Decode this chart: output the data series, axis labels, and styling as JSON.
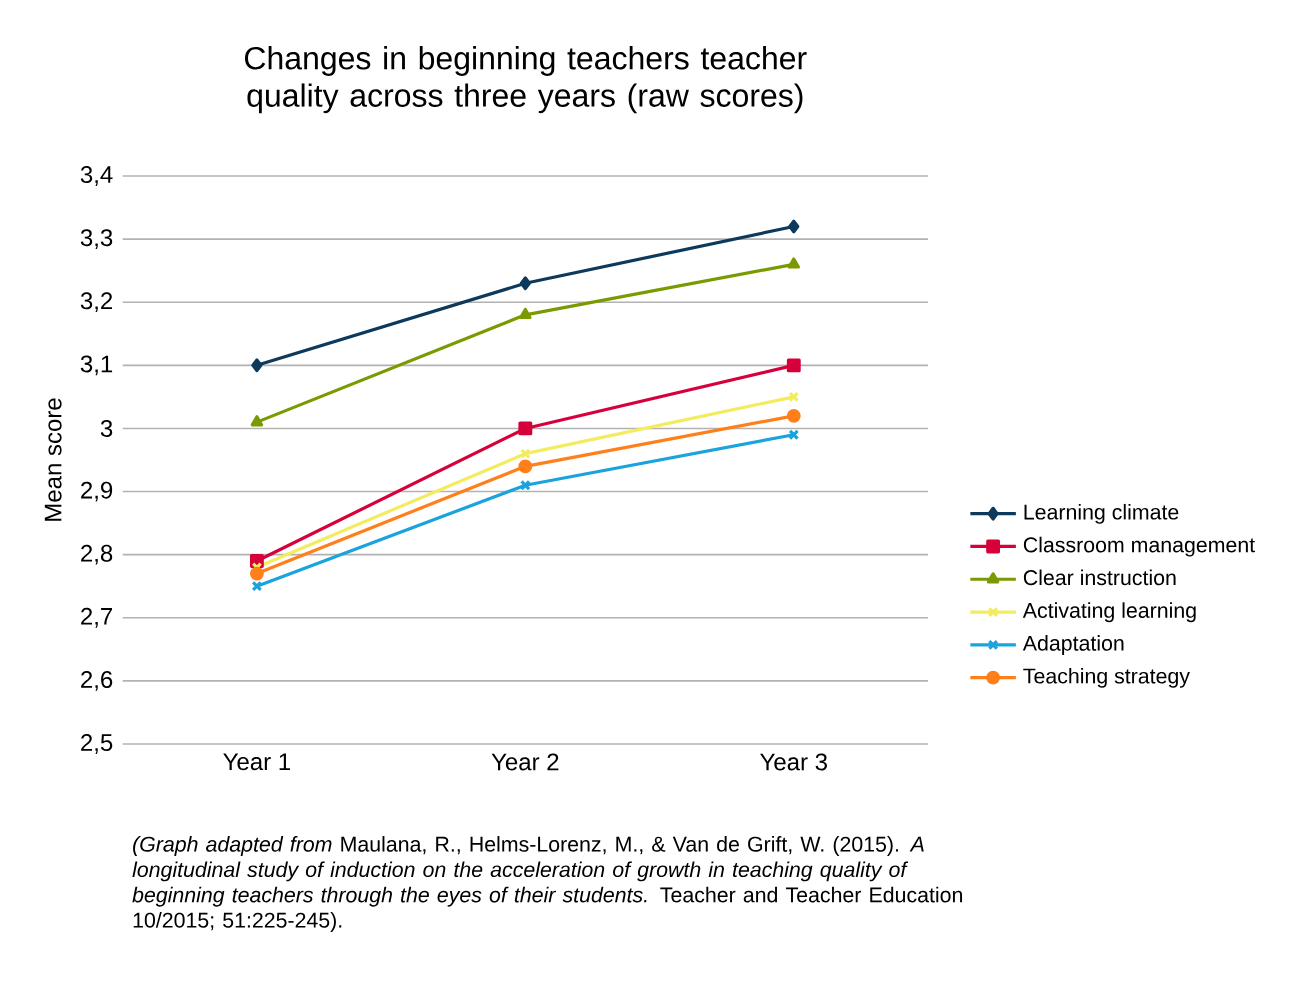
{
  "chart_data": {
    "type": "line",
    "title": "Changes in beginning teachers teacher quality across three years (raw scores)",
    "ylabel": "Mean score",
    "categories": [
      "Year 1",
      "Year 2",
      "Year 3"
    ],
    "series": [
      {
        "name": "Learning climate",
        "color": "#0d3a5c",
        "marker": "diamond",
        "values": [
          3.1,
          3.23,
          3.32
        ]
      },
      {
        "name": "Classroom management",
        "color": "#d6003a",
        "marker": "square",
        "values": [
          2.79,
          3.0,
          3.1
        ]
      },
      {
        "name": "Clear instruction",
        "color": "#7a9a01",
        "marker": "triangle",
        "values": [
          3.01,
          3.18,
          3.26
        ]
      },
      {
        "name": "Activating learning",
        "color": "#f2ec5e",
        "marker": "cross",
        "values": [
          2.78,
          2.96,
          3.05
        ]
      },
      {
        "name": "Adaptation",
        "color": "#1aa3dc",
        "marker": "cross",
        "values": [
          2.75,
          2.91,
          2.99
        ]
      },
      {
        "name": "Teaching strategy",
        "color": "#ff7f1a",
        "marker": "circle",
        "values": [
          2.77,
          2.94,
          3.02
        ]
      }
    ],
    "ylim": [
      2.5,
      3.4
    ],
    "yticks": [
      {
        "value": 2.5,
        "label": "2,5"
      },
      {
        "value": 2.6,
        "label": "2,6"
      },
      {
        "value": 2.7,
        "label": "2,7"
      },
      {
        "value": 2.8,
        "label": "2,8"
      },
      {
        "value": 2.9,
        "label": "2,9"
      },
      3,
      {
        "value": 3.1,
        "label": "3,1"
      },
      {
        "value": 3.2,
        "label": "3,2"
      },
      {
        "value": 3.3,
        "label": "3,3"
      },
      {
        "value": 3.4,
        "label": "3,4"
      }
    ],
    "grid": "y",
    "legend": "right",
    "line_style": "solid",
    "annotations": [
      "*(Graph adapted from* Maulana, R., Helms-Lorenz, M., & Van de Grift, W. (2015). *A longitudinal study of induction on the acceleration of growth in teaching quality of beginning teachers through the eyes of their students.* Teacher and Teacher Education 10/2015; 51:225-245)."
    ]
  }
}
